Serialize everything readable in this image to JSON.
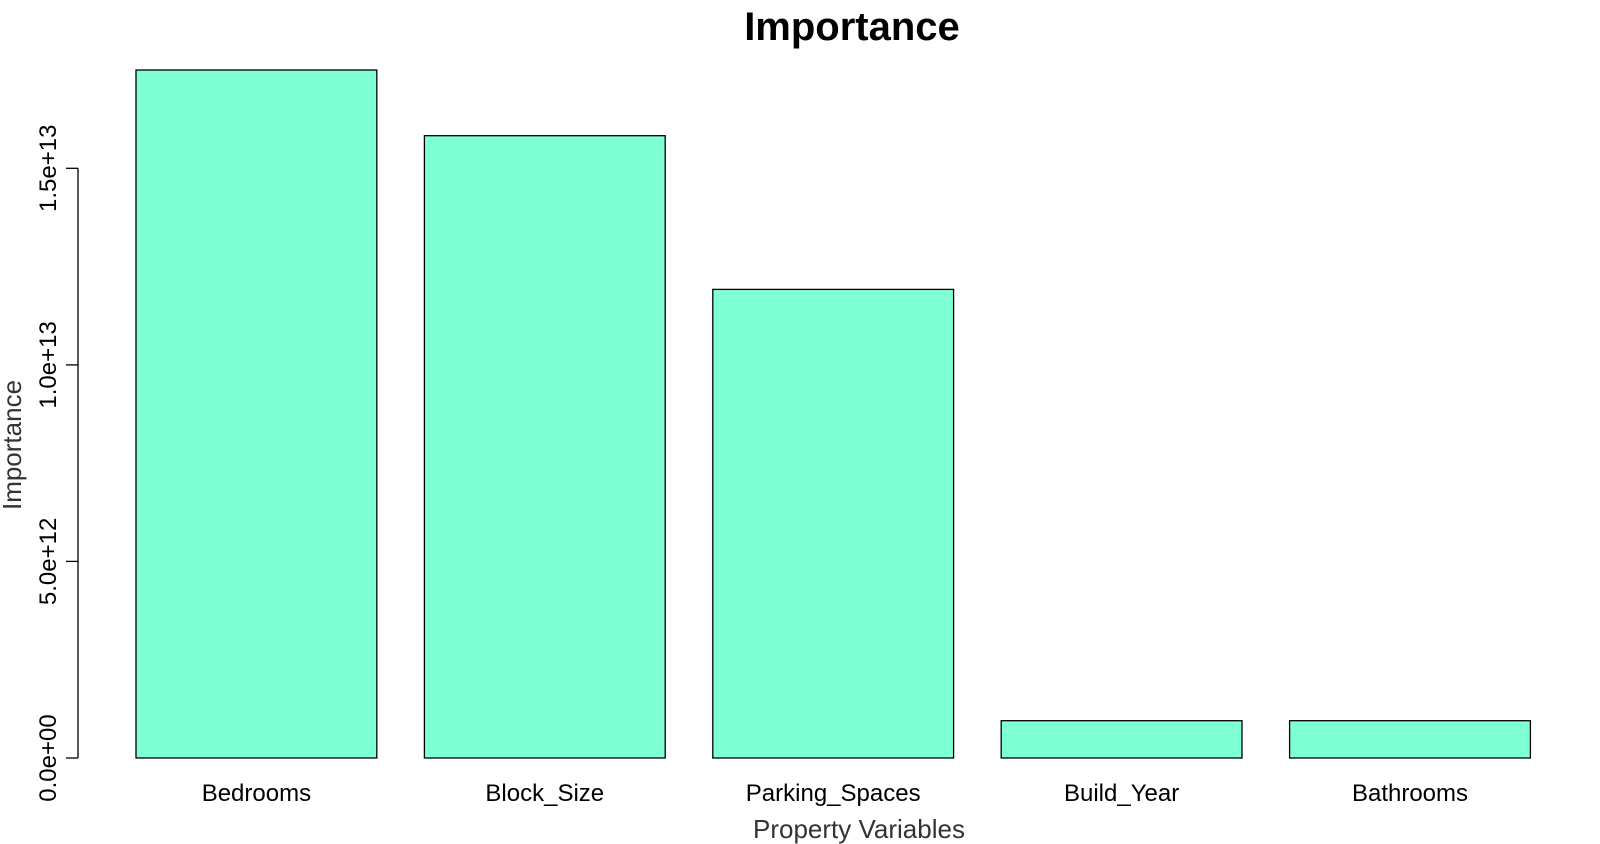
{
  "chart_data": {
    "type": "bar",
    "title": "Importance",
    "xlabel": "Property Variables",
    "ylabel": "Importance",
    "categories": [
      "Bedrooms",
      "Block_Size",
      "Parking_Spaces",
      "Build_Year",
      "Bathrooms"
    ],
    "values": [
      17500000000000,
      15830000000000,
      11920000000000,
      950000000000,
      950000000000
    ],
    "ylim": [
      0,
      17500000000000
    ],
    "yticks": [
      0,
      5000000000000,
      10000000000000,
      15000000000000
    ],
    "ytick_labels": [
      "0.0e+00",
      "5.0e+12",
      "1.0e+13",
      "1.5e+13"
    ],
    "bar_color": "#7fffd4",
    "bar_border_color": "#000000",
    "grid": false,
    "legend": "none"
  }
}
